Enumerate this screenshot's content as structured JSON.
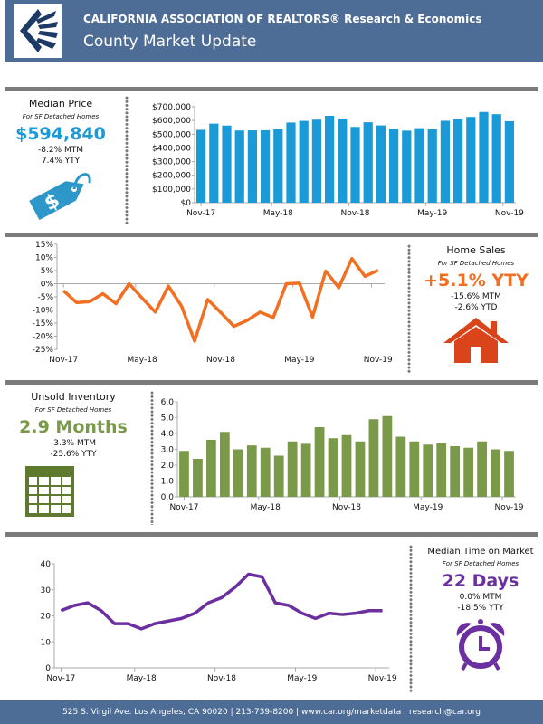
{
  "header": {
    "org": "CALIFORNIA ASSOCIATION OF REALTORS® Research & Economics",
    "title": "County Market Update",
    "logo": "C.A.R. logo"
  },
  "colors": {
    "header": "#4e6d96",
    "price": "#1a9ad6",
    "sales": "#f26f21",
    "inventory": "#7a9a4a",
    "time": "#6b2fa0"
  },
  "panels": {
    "price": {
      "title": "Median Price",
      "subtitle": "For SF Detached Homes",
      "value": "$594,840",
      "line1": "-8.2% MTM",
      "line2": "7.4% YTY",
      "icon": "price-tag-icon"
    },
    "sales": {
      "title": "Home Sales",
      "subtitle": "For SF Detached Homes",
      "value": "+5.1% YTY",
      "line1": "-15.6% MTM",
      "line2": "-2.6% YTD",
      "icon": "house-icon"
    },
    "inventory": {
      "title": "Unsold Inventory",
      "subtitle": "For SF Detached Homes",
      "value": "2.9 Months",
      "line1": "-3.3% MTM",
      "line2": "-25.6% YTY",
      "icon": "calendar-icon"
    },
    "time": {
      "title": "Median Time on Market",
      "subtitle": "For SF Detached Homes",
      "value": "22 Days",
      "line1": "0.0% MTM",
      "line2": "-18.5% YTY",
      "icon": "alarm-clock-icon"
    }
  },
  "chart_data": [
    {
      "id": "price",
      "type": "bar",
      "color": "#1a9ad6",
      "x_ticks": [
        "Nov-17",
        "May-18",
        "Nov-18",
        "May-19",
        "Nov-19"
      ],
      "yticks": [
        "$0",
        "$100,000",
        "$200,000",
        "$300,000",
        "$400,000",
        "$500,000",
        "$600,000",
        "$700,000"
      ],
      "ylim": [
        0,
        700000
      ],
      "values": [
        532000,
        577000,
        563000,
        527000,
        528000,
        529000,
        536000,
        585000,
        597000,
        606000,
        634000,
        614000,
        553000,
        587000,
        564000,
        541000,
        526000,
        544000,
        538000,
        598000,
        610000,
        626000,
        662000,
        646000,
        594840
      ]
    },
    {
      "id": "sales",
      "type": "line",
      "color": "#f26f21",
      "x_ticks": [
        "Nov-17",
        "May-18",
        "Nov-18",
        "May-19",
        "Nov-19"
      ],
      "yticks": [
        "-25%",
        "-20%",
        "-15%",
        "-10%",
        "-5%",
        "0%",
        "5%",
        "10%",
        "15%"
      ],
      "ylim": [
        -25,
        15
      ],
      "values": [
        -2.7,
        -7.2,
        -6.8,
        -3.8,
        -7.6,
        0,
        -5.5,
        -10.8,
        -0.9,
        -8.5,
        -21.9,
        -6.0,
        -11.0,
        -16.2,
        -14.0,
        -10.8,
        -12.9,
        0,
        0.2,
        -12.7,
        4.8,
        -1.5,
        9.6,
        2.8,
        5.1
      ]
    },
    {
      "id": "inventory",
      "type": "bar",
      "color": "#7a9a4a",
      "x_ticks": [
        "Nov-17",
        "May-18",
        "Nov-18",
        "May-19",
        "Nov-19"
      ],
      "yticks": [
        "0.0",
        "1.0",
        "2.0",
        "3.0",
        "4.0",
        "5.0",
        "6.0"
      ],
      "ylim": [
        0,
        6
      ],
      "values": [
        2.9,
        2.4,
        3.6,
        4.1,
        3.0,
        3.25,
        3.1,
        2.6,
        3.5,
        3.35,
        4.4,
        3.7,
        3.9,
        3.5,
        4.9,
        5.1,
        3.8,
        3.5,
        3.3,
        3.4,
        3.2,
        3.1,
        3.5,
        3.0,
        2.9
      ]
    },
    {
      "id": "time",
      "type": "line",
      "color": "#6b2fa0",
      "x_ticks": [
        "Nov-17",
        "May-18",
        "Nov-18",
        "May-19",
        "Nov-19"
      ],
      "yticks": [
        "0",
        "10",
        "20",
        "30",
        "40"
      ],
      "ylim": [
        0,
        40
      ],
      "values": [
        22,
        24,
        25,
        22,
        17,
        17,
        15,
        17,
        18,
        19,
        21,
        25,
        27,
        31,
        36,
        35,
        25,
        24,
        21,
        19,
        21,
        20.5,
        21,
        22,
        22
      ]
    }
  ],
  "footer": {
    "text": "525 S. Virgil Ave. Los Angeles, CA 90020 | 213-739-8200 | www.car.org/marketdata | research@car.org"
  }
}
